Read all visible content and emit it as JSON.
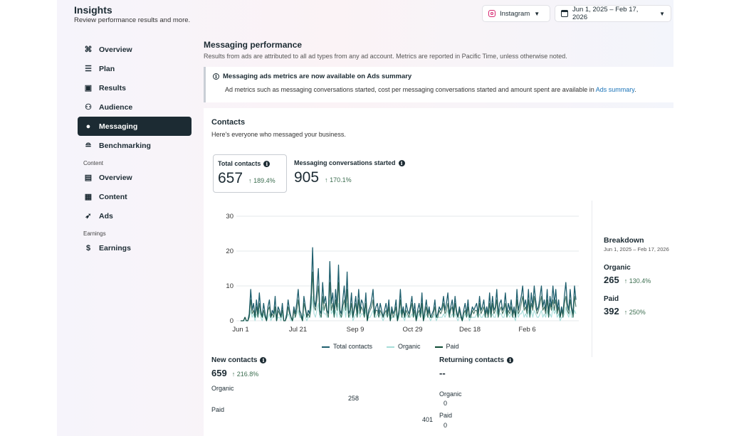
{
  "header": {
    "title": "Insights",
    "subtitle": "Review performance results and more.",
    "platform_selector": {
      "label": "Instagram",
      "icon": "instagram-icon"
    },
    "date_selector": {
      "label": "Jun 1, 2025 – Feb 17, 2026",
      "icon": "calendar-icon"
    }
  },
  "sidebar": {
    "items": [
      {
        "label": "Overview",
        "icon": "overview-icon"
      },
      {
        "label": "Plan",
        "icon": "list-icon"
      },
      {
        "label": "Results",
        "icon": "results-chart-icon"
      },
      {
        "label": "Audience",
        "icon": "audience-icon"
      },
      {
        "label": "Messaging",
        "icon": "chat-bubble-icon",
        "active": true
      },
      {
        "label": "Benchmarking",
        "icon": "benchmark-icon"
      }
    ],
    "content_section": {
      "label": "Content",
      "items": [
        {
          "label": "Overview",
          "icon": "grid-overview-icon"
        },
        {
          "label": "Content",
          "icon": "table-icon"
        },
        {
          "label": "Ads",
          "icon": "rocket-icon"
        }
      ]
    },
    "earnings_section": {
      "label": "Earnings",
      "items": [
        {
          "label": "Earnings",
          "icon": "dollar-icon"
        }
      ]
    }
  },
  "main": {
    "title": "Messaging performance",
    "subtitle": "Results from ads are attributed to all ad types from any ad account. Metrics are reported in Pacific Time, unless otherwise noted.",
    "notice": {
      "title": "Messaging ads metrics are now available on Ads summary",
      "body": "Ad metrics such as messaging conversations started, cost per messaging conversations started and amount spent are available in",
      "link": "Ads summary",
      "trailing": "."
    }
  },
  "contacts": {
    "title": "Contacts",
    "subtitle": "Here's everyone who messaged your business.",
    "metrics": [
      {
        "label": "Total contacts",
        "value": "657",
        "delta": "189.4%"
      },
      {
        "label": "Messaging conversations started",
        "value": "905",
        "delta": "170.1%"
      }
    ],
    "breakdown": {
      "title": "Breakdown",
      "date": "Jun 1, 2025 – Feb 17, 2026",
      "organic": {
        "label": "Organic",
        "value": "265",
        "delta": "130.4%"
      },
      "paid": {
        "label": "Paid",
        "value": "392",
        "delta": "250%"
      }
    },
    "new_contacts": {
      "label": "New contacts",
      "value": "659",
      "delta": "216.8%",
      "organic_label": "Organic",
      "organic_value": "258",
      "paid_label": "Paid",
      "paid_value": "401"
    },
    "returning_contacts": {
      "label": "Returning contacts",
      "value": "--",
      "organic_label": "Organic",
      "organic_value": "0",
      "paid_label": "Paid",
      "paid_value": "0"
    },
    "colors": {
      "total": "#1f5f6e",
      "organic": "#a6ddd9",
      "paid": "#0d4a33",
      "up_arrow": "#3c6e50"
    }
  },
  "chart_data": {
    "type": "line",
    "ylim": [
      0,
      30
    ],
    "yticks": [
      0,
      10,
      20,
      30
    ],
    "xticks": [
      "Jun 1",
      "Jul 21",
      "Sep 9",
      "Oct 29",
      "Dec 18",
      "Feb 6"
    ],
    "legend": [
      "Total contacts",
      "Organic",
      "Paid"
    ],
    "legend_position": "bottom",
    "grid": true,
    "x_range": [
      "2025-06-01",
      "2026-02-17"
    ],
    "series": [
      {
        "name": "Total contacts",
        "values": [
          0,
          0,
          0,
          1,
          0,
          0,
          2,
          9,
          3,
          5,
          1,
          6,
          2,
          8,
          3,
          1,
          5,
          2,
          0,
          4,
          6,
          1,
          3,
          2,
          7,
          0,
          4,
          3,
          1,
          5,
          0,
          0,
          2,
          6,
          3,
          1,
          0,
          4,
          2,
          5,
          9,
          3,
          2,
          0,
          7,
          4,
          1,
          3,
          2,
          8,
          21,
          6,
          4,
          9,
          15,
          3,
          2,
          11,
          5,
          7,
          3,
          2,
          17,
          5,
          8,
          2,
          9,
          4,
          16,
          3,
          2,
          6,
          10,
          4,
          14,
          2,
          3,
          8,
          1,
          4,
          7,
          2,
          9,
          3,
          6,
          5,
          2,
          8,
          0,
          3,
          4,
          6,
          9,
          2,
          4,
          5,
          2,
          5,
          3,
          1,
          3,
          5,
          2,
          6,
          0,
          4,
          2,
          3,
          6,
          0,
          3,
          9,
          2,
          4,
          1,
          5,
          3,
          2,
          4,
          7,
          2,
          5,
          0,
          3,
          5,
          2,
          8,
          0,
          3,
          6,
          2,
          4,
          1,
          2,
          3,
          6,
          1,
          2,
          4,
          3,
          4,
          7,
          3,
          5,
          8,
          2,
          4,
          6,
          2,
          7,
          3,
          1,
          4,
          2,
          0,
          3,
          5,
          2,
          6,
          1,
          2,
          4,
          3,
          4,
          5,
          2,
          7,
          3,
          4,
          6,
          2,
          4,
          2,
          8,
          2,
          7,
          3,
          4,
          9,
          2,
          5,
          6,
          3,
          4,
          8,
          2,
          5,
          3,
          6,
          2,
          4,
          1,
          9,
          3,
          5,
          7,
          10,
          4,
          6,
          3,
          9,
          2,
          8,
          4,
          10,
          6,
          3,
          4,
          7,
          10,
          4,
          6,
          3,
          9,
          2,
          7,
          4,
          10,
          5,
          9,
          3,
          6,
          1,
          4,
          2,
          7,
          11,
          5,
          3,
          9,
          4,
          2,
          10,
          6
        ]
      },
      {
        "name": "Organic",
        "values": [
          0,
          0,
          0,
          0,
          0,
          0,
          1,
          3,
          1,
          2,
          0,
          2,
          1,
          3,
          1,
          0,
          2,
          1,
          0,
          1,
          2,
          0,
          1,
          1,
          3,
          0,
          1,
          1,
          0,
          2,
          0,
          0,
          1,
          2,
          1,
          0,
          0,
          1,
          1,
          2,
          3,
          1,
          1,
          0,
          2,
          1,
          0,
          1,
          1,
          3,
          7,
          2,
          1,
          3,
          5,
          1,
          1,
          4,
          2,
          2,
          1,
          1,
          6,
          2,
          3,
          1,
          3,
          1,
          5,
          1,
          1,
          2,
          4,
          1,
          5,
          1,
          1,
          3,
          0,
          1,
          2,
          1,
          3,
          1,
          2,
          2,
          1,
          3,
          0,
          1,
          1,
          2,
          3,
          1,
          1,
          2,
          1,
          2,
          1,
          0,
          1,
          2,
          1,
          2,
          0,
          1,
          1,
          1,
          2,
          0,
          1,
          3,
          1,
          1,
          0,
          2,
          1,
          1,
          1,
          2,
          1,
          2,
          0,
          1,
          2,
          1,
          3,
          0,
          1,
          2,
          1,
          1,
          0,
          1,
          1,
          2,
          0,
          1,
          1,
          1,
          1,
          2,
          1,
          2,
          3,
          1,
          1,
          2,
          1,
          2,
          1,
          0,
          1,
          1,
          0,
          1,
          2,
          1,
          2,
          0,
          1,
          1,
          1,
          1,
          2,
          1,
          2,
          1,
          1,
          2,
          1,
          1,
          1,
          3,
          1,
          2,
          1,
          1,
          3,
          1,
          2,
          2,
          1,
          1,
          3,
          1,
          2,
          1,
          2,
          1,
          1,
          0,
          3,
          1,
          2,
          2,
          3,
          1,
          2,
          1,
          3,
          1,
          3,
          1,
          3,
          2,
          1,
          1,
          2,
          3,
          1,
          2,
          1,
          3,
          1,
          2,
          1,
          4,
          2,
          3,
          1,
          2,
          0,
          1,
          1,
          2,
          4,
          2,
          1,
          3,
          1,
          1,
          3,
          2
        ]
      },
      {
        "name": "Paid",
        "values": [
          0,
          0,
          0,
          1,
          0,
          0,
          1,
          6,
          2,
          3,
          1,
          4,
          1,
          5,
          2,
          1,
          3,
          1,
          0,
          3,
          4,
          1,
          2,
          1,
          4,
          0,
          3,
          2,
          1,
          3,
          0,
          0,
          1,
          4,
          2,
          1,
          0,
          3,
          1,
          3,
          6,
          2,
          1,
          0,
          5,
          3,
          1,
          2,
          1,
          5,
          14,
          4,
          3,
          6,
          10,
          2,
          1,
          7,
          3,
          5,
          2,
          1,
          11,
          3,
          5,
          1,
          6,
          3,
          11,
          2,
          1,
          4,
          6,
          3,
          9,
          1,
          2,
          5,
          1,
          3,
          5,
          1,
          6,
          2,
          4,
          3,
          1,
          5,
          0,
          2,
          3,
          4,
          6,
          1,
          3,
          3,
          1,
          3,
          2,
          1,
          2,
          3,
          1,
          4,
          0,
          3,
          1,
          2,
          4,
          0,
          2,
          6,
          1,
          3,
          1,
          3,
          2,
          1,
          3,
          5,
          1,
          3,
          0,
          2,
          3,
          1,
          5,
          0,
          2,
          4,
          1,
          3,
          1,
          1,
          2,
          4,
          1,
          1,
          3,
          2,
          3,
          5,
          2,
          3,
          5,
          1,
          3,
          4,
          1,
          5,
          2,
          1,
          3,
          1,
          0,
          2,
          3,
          1,
          4,
          1,
          1,
          3,
          2,
          3,
          3,
          1,
          5,
          2,
          3,
          4,
          1,
          3,
          1,
          5,
          1,
          5,
          2,
          3,
          6,
          1,
          3,
          4,
          2,
          3,
          5,
          1,
          3,
          2,
          4,
          1,
          3,
          1,
          6,
          2,
          3,
          5,
          7,
          3,
          4,
          2,
          6,
          1,
          5,
          3,
          7,
          4,
          2,
          3,
          5,
          7,
          3,
          4,
          2,
          6,
          1,
          5,
          3,
          6,
          3,
          6,
          2,
          4,
          1,
          3,
          1,
          5,
          7,
          3,
          2,
          6,
          3,
          1,
          7,
          4
        ]
      }
    ]
  }
}
